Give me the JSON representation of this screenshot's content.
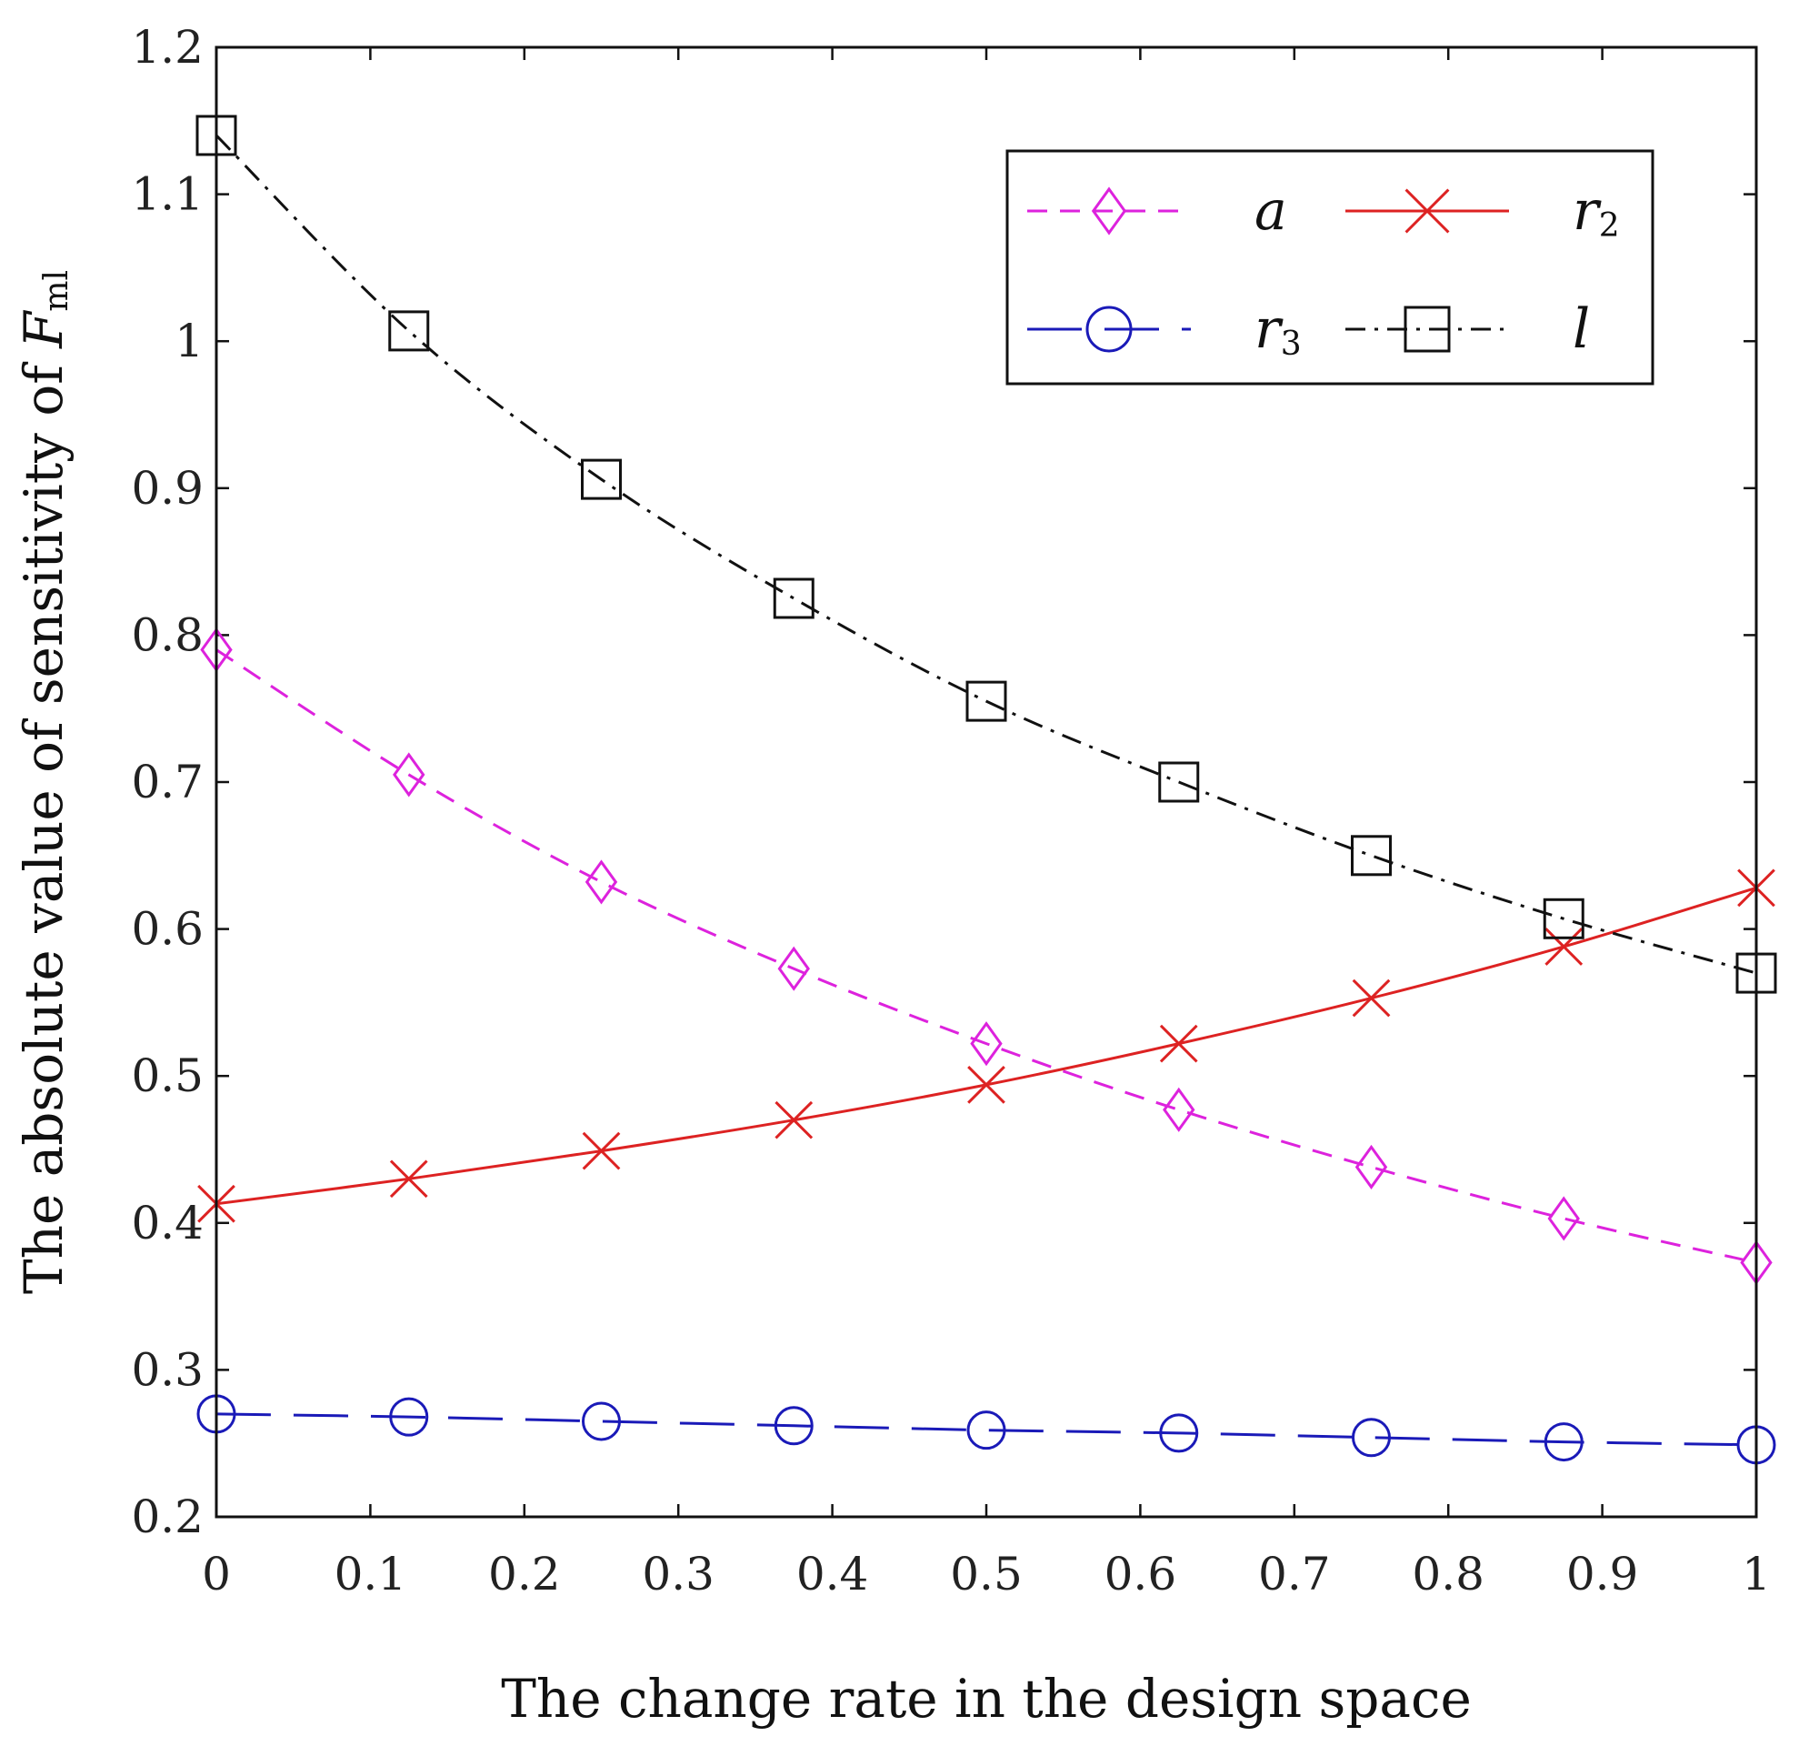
{
  "chart_data": {
    "type": "line",
    "title": "",
    "xlabel": "The change rate in the design space",
    "ylabel": {
      "prefix": "The absolute value of sensitivity of ",
      "var": "F",
      "sub": "ml"
    },
    "xlim": [
      0,
      1
    ],
    "ylim": [
      0.2,
      1.2
    ],
    "xticks": [
      0,
      0.1,
      0.2,
      0.3,
      0.4,
      0.5,
      0.6,
      0.7,
      0.8,
      0.9,
      1
    ],
    "xtick_labels": [
      "0",
      "0.1",
      "0.2",
      "0.3",
      "0.4",
      "0.5",
      "0.6",
      "0.7",
      "0.8",
      "0.9",
      "1"
    ],
    "yticks": [
      0.2,
      0.3,
      0.4,
      0.5,
      0.6,
      0.7,
      0.8,
      0.9,
      1.0,
      1.1,
      1.2
    ],
    "ytick_labels": [
      "0.2",
      "0.3",
      "0.4",
      "0.5",
      "0.6",
      "0.7",
      "0.8",
      "0.9",
      "1",
      "1.1",
      "1.2"
    ],
    "x": [
      0,
      0.125,
      0.25,
      0.375,
      0.5,
      0.625,
      0.75,
      0.875,
      1
    ],
    "legend_position": "top-right",
    "series": [
      {
        "name": "a",
        "label": "a",
        "sub": "",
        "color": "#dd22dd",
        "dash": "22,14",
        "marker": "diamond",
        "values": [
          0.79,
          0.705,
          0.632,
          0.573,
          0.522,
          0.477,
          0.438,
          0.403,
          0.373
        ]
      },
      {
        "name": "r2",
        "label": "r",
        "sub": "2",
        "color": "#dd2222",
        "dash": "",
        "marker": "x",
        "values": [
          0.413,
          0.43,
          0.449,
          0.47,
          0.494,
          0.522,
          0.553,
          0.588,
          0.628
        ]
      },
      {
        "name": "r3",
        "label": "r",
        "sub": "3",
        "color": "#1a1ab8",
        "dash": "60,25",
        "marker": "circle",
        "values": [
          0.27,
          0.268,
          0.265,
          0.262,
          0.259,
          0.257,
          0.254,
          0.251,
          0.249
        ]
      },
      {
        "name": "l",
        "label": "l",
        "sub": "",
        "color": "#111111",
        "dash": "22,10,4,10",
        "marker": "square",
        "values": [
          1.14,
          1.007,
          0.906,
          0.825,
          0.755,
          0.7,
          0.65,
          0.607,
          0.57
        ]
      }
    ]
  }
}
